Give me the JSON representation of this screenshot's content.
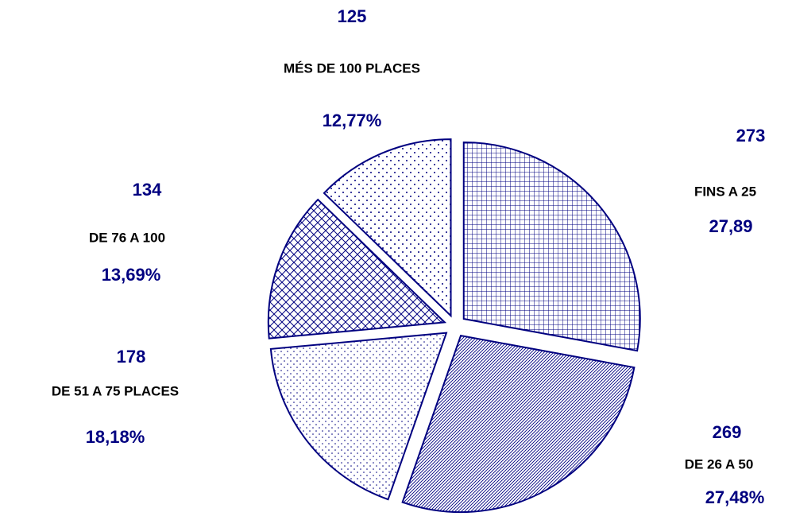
{
  "chart_data": {
    "type": "pie",
    "categories": [
      "FINS A 25",
      "DE 26 A 50",
      "DE 51 A 75 PLACES",
      "DE 76 A 100",
      "MÉS DE 100 PLACES"
    ],
    "values": [
      273,
      269,
      178,
      134,
      125
    ],
    "percentages": [
      27.89,
      27.48,
      18.18,
      13.69,
      12.77
    ],
    "percentage_labels": [
      "27,89",
      "27,48%",
      "18,18%",
      "13,69%",
      "12,77%"
    ],
    "color": "#000080"
  }
}
